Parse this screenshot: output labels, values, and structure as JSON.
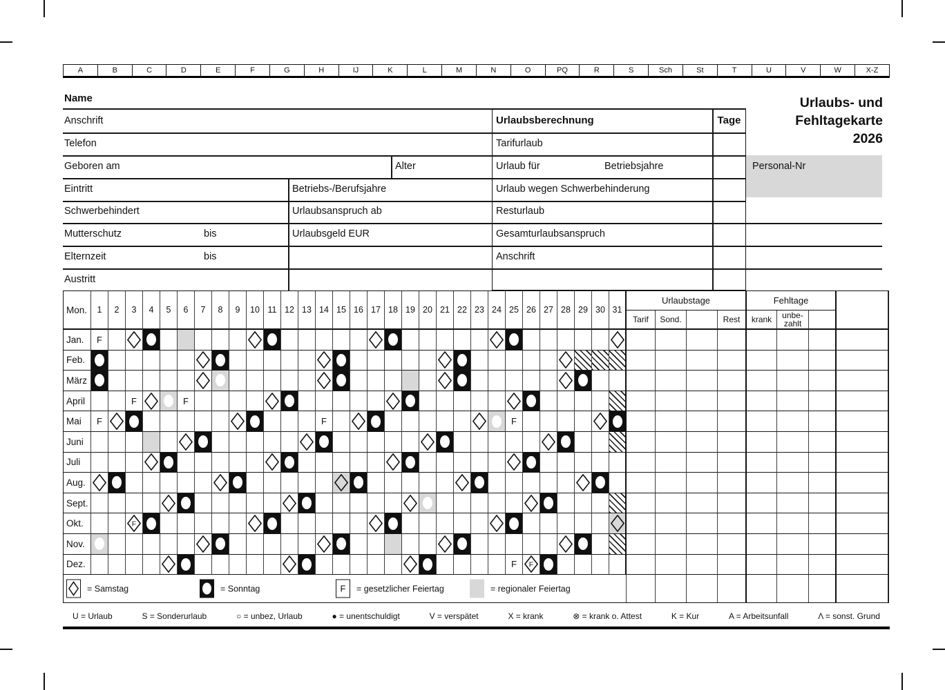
{
  "card": {
    "title_line1": "Urlaubs- und",
    "title_line2": "Fehltagekarte",
    "title_line3": "2026",
    "personal_nr_label": "Personal-Nr"
  },
  "colors": {
    "regional_gray": "#d8d8d8",
    "ink": "#111111"
  },
  "tabs": [
    "A",
    "B",
    "C",
    "D",
    "E",
    "F",
    "G",
    "H",
    "IJ",
    "K",
    "L",
    "M",
    "N",
    "O",
    "PQ",
    "R",
    "S",
    "Sch",
    "St",
    "T",
    "U",
    "V",
    "W",
    "X-Z"
  ],
  "form_left": {
    "name": "Name",
    "row1": "Anschrift",
    "row2": "Telefon",
    "row3a": "Geboren am",
    "row3b": "Alter",
    "row4a": "Eintritt",
    "row4b": "Betriebs-/Berufsjahre",
    "row5a": "Schwerbehindert",
    "row5b": "Urlaubsanspruch ab",
    "row6a": "Mutterschutz",
    "row6b": "bis",
    "row6c": "Urlaubsgeld EUR",
    "row7a": "Elternzeit",
    "row7b": "bis",
    "row8": "Austritt"
  },
  "form_right": {
    "header": "Urlaubsberechnung",
    "tage": "Tage",
    "row1": "Tarifurlaub",
    "row2a": "Urlaub für",
    "row2b": "Betriebsjahre",
    "row3": "Urlaub wegen Schwerbehinderung",
    "row4": "Resturlaub",
    "row5": "Gesamturlaubsanspruch",
    "row6": "Anschrift"
  },
  "calendar": {
    "mon_label": "Mon.",
    "day_count": 31,
    "feiertag_letter": "F",
    "groups": {
      "urlaubstage": "Urlaubstage",
      "fehltage": "Fehltage"
    },
    "subcols": [
      "Tarif",
      "Sond.",
      "",
      "Rest",
      "krank",
      "unbe-\nzahlt",
      ""
    ],
    "months": [
      {
        "name": "Jan.",
        "days": 31,
        "marks": {
          "1": "f",
          "3": "sa",
          "4": "so",
          "6": "gray",
          "10": "sa",
          "11": "so",
          "17": "sa",
          "18": "so",
          "24": "sa",
          "25": "so",
          "31": "sa"
        }
      },
      {
        "name": "Feb.",
        "days": 28,
        "marks": {
          "1": "so",
          "7": "sa",
          "8": "so",
          "14": "sa",
          "15": "so",
          "21": "sa",
          "22": "so",
          "28": "sa"
        }
      },
      {
        "name": "März",
        "days": 31,
        "marks": {
          "1": "so",
          "7": "sa",
          "8": "gso",
          "14": "sa",
          "15": "so",
          "19": "gray",
          "21": "sa",
          "22": "so",
          "28": "sa",
          "29": "so"
        }
      },
      {
        "name": "April",
        "days": 30,
        "marks": {
          "3": "f",
          "4": "sa",
          "5": "gso",
          "6": "f",
          "11": "sa",
          "12": "so",
          "18": "sa",
          "19": "so",
          "25": "sa",
          "26": "so"
        }
      },
      {
        "name": "Mai",
        "days": 31,
        "marks": {
          "1": "f",
          "2": "sa",
          "3": "so",
          "9": "sa",
          "10": "so",
          "14": "f",
          "16": "sa",
          "17": "so",
          "23": "sa",
          "24": "gso",
          "25": "f",
          "30": "sa",
          "31": "so"
        }
      },
      {
        "name": "Juni",
        "days": 30,
        "marks": {
          "4": "gray",
          "6": "sa",
          "7": "so",
          "13": "sa",
          "14": "so",
          "20": "sa",
          "21": "so",
          "27": "sa",
          "28": "so"
        }
      },
      {
        "name": "Juli",
        "days": 31,
        "marks": {
          "4": "sa",
          "5": "so",
          "11": "sa",
          "12": "so",
          "18": "sa",
          "19": "so",
          "25": "sa",
          "26": "so"
        }
      },
      {
        "name": "Aug.",
        "days": 31,
        "marks": {
          "1": "sa",
          "2": "so",
          "8": "sa",
          "9": "so",
          "15": "gsa",
          "16": "so",
          "22": "sa",
          "23": "so",
          "29": "sa",
          "30": "so"
        }
      },
      {
        "name": "Sept.",
        "days": 30,
        "marks": {
          "5": "sa",
          "6": "so",
          "12": "sa",
          "13": "so",
          "19": "sa",
          "20": "gso",
          "26": "sa",
          "27": "so"
        }
      },
      {
        "name": "Okt.",
        "days": 31,
        "marks": {
          "3": "fsa",
          "4": "so",
          "10": "sa",
          "11": "so",
          "17": "sa",
          "18": "so",
          "24": "sa",
          "25": "so",
          "31": "gsa"
        }
      },
      {
        "name": "Nov.",
        "days": 30,
        "marks": {
          "1": "gso",
          "7": "sa",
          "8": "so",
          "14": "sa",
          "15": "so",
          "18": "gray",
          "21": "sa",
          "22": "so",
          "28": "sa",
          "29": "so"
        }
      },
      {
        "name": "Dez.",
        "days": 31,
        "marks": {
          "5": "sa",
          "6": "so",
          "12": "sa",
          "13": "so",
          "19": "sa",
          "20": "so",
          "25": "f",
          "26": "fsa",
          "27": "so"
        }
      }
    ],
    "legend": [
      {
        "sym": "sa",
        "text": "= Samstag"
      },
      {
        "sym": "so",
        "text": "= Sonntag"
      },
      {
        "sym": "f",
        "text": "= gesetzlicher Feiertag"
      },
      {
        "sym": "gray",
        "text": "= regionaler Feiertag"
      }
    ],
    "bottom_legend": [
      "U = Urlaub",
      "S = Sonderurlaub",
      "○ = unbez, Urlaub",
      "● = unentschuldigt",
      "V = verspätet",
      "X = krank",
      "⊗ = krank o. Attest",
      "K = Kur",
      "A = Arbeitsunfall",
      "Λ = sonst. Grund"
    ]
  }
}
